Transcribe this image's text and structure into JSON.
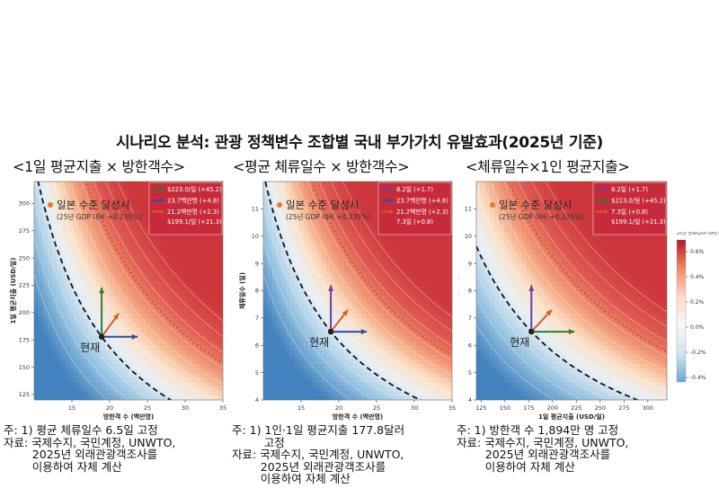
{
  "title": "시나리오 분석: 관광 정책변수 조합별 국내 부가가치 유발효과(2025년 기준)",
  "colorbar": {
    "title": "25년 명목GDP 대비(%)",
    "ticks": [
      "0.6%",
      "0.4%",
      "0.2%",
      "0.0%",
      "-0.2%",
      "-0.4%"
    ],
    "colors": [
      "#b2182b",
      "#ef8a62",
      "#fddbc7",
      "#f7f7f7",
      "#d1e5f0",
      "#67a9cf"
    ]
  },
  "chart_data": [
    {
      "type": "heatmap",
      "panel_title": "<1일 평균지출 × 방한객수>",
      "xlabel": "방한객 수 (백만명)",
      "ylabel": "1일 평균지출 (USD/일)",
      "xlim": [
        10,
        35
      ],
      "ylim": [
        120,
        320
      ],
      "xticks": [
        "15",
        "20",
        "25",
        "30",
        "35"
      ],
      "yticks": [
        "125",
        "150",
        "175",
        "200",
        "225",
        "250",
        "275",
        "300"
      ],
      "current": {
        "x": 18.94,
        "y": 177.8,
        "label": "현재"
      },
      "japan_label": "일본 수준 달성시",
      "japan_sublabel": "(25년 GDP 대비 +0.235%)",
      "legend": [
        {
          "text": "$223.0/일 (+45.2)",
          "color": "#2e7d32"
        },
        {
          "text": "23.7백만명 (+4.8)",
          "color": "#2b4f9e"
        },
        {
          "text": "21.2백만명 (+2.3)",
          "color": "#e05a1c"
        },
        {
          "text": "$199.1/일 (+21.3)",
          "color": "#e05a1c"
        }
      ],
      "arrows": [
        {
          "x": 18.94,
          "y": 223.0,
          "color": "#2e7d32"
        },
        {
          "x": 23.7,
          "y": 177.8,
          "color": "#2b4f9e"
        },
        {
          "x": 21.2,
          "y": 199.1,
          "color": "#e05a1c"
        }
      ],
      "notes": "주: 1) 평균 체류일수 6.5일 고정\n자료: 국제수지, 국민계정, UNWTO,\n        2025년 외래관광객조사를\n        이용하여 자체 계산"
    },
    {
      "type": "heatmap",
      "panel_title": "<평균 체류일수 × 방한객수>",
      "xlabel": "방한객 수 (백만명)",
      "ylabel": "체류일수 (일)",
      "xlim": [
        10,
        35
      ],
      "ylim": [
        4,
        12
      ],
      "xticks": [
        "15",
        "20",
        "25",
        "30",
        "35"
      ],
      "yticks": [
        "4",
        "5",
        "6",
        "7",
        "8",
        "9",
        "10",
        "11"
      ],
      "current": {
        "x": 18.94,
        "y": 6.5,
        "label": "현재"
      },
      "japan_label": "일본 수준 달성시",
      "japan_sublabel": "(25년 GDP 대비 +0.235%)",
      "legend": [
        {
          "text": "8.2일 (+1.7)",
          "color": "#6a3fa0"
        },
        {
          "text": "23.7백만명 (+4.8)",
          "color": "#2b4f9e"
        },
        {
          "text": "21.2백만명 (+2.3)",
          "color": "#e05a1c"
        },
        {
          "text": "7.3일 (+0.8)",
          "color": "#e05a1c"
        }
      ],
      "arrows": [
        {
          "x": 18.94,
          "y": 8.2,
          "color": "#6a3fa0"
        },
        {
          "x": 23.7,
          "y": 6.5,
          "color": "#2b4f9e"
        },
        {
          "x": 21.2,
          "y": 7.3,
          "color": "#e05a1c"
        }
      ],
      "notes": "주: 1) 1인·1일 평균지출 177.8달러\n         고정\n자료: 국제수지, 국민계정, UNWTO,\n        2025년 외래관광객조사를\n        이용하여 자체 계산"
    },
    {
      "type": "heatmap",
      "panel_title": "<체류일수×1인 평균지출>",
      "xlabel": "1일 평균지출 (USD/일)",
      "ylabel": "체류일수 (일)",
      "xlim": [
        120,
        320
      ],
      "ylim": [
        4,
        12
      ],
      "xticks": [
        "125",
        "150",
        "175",
        "200",
        "225",
        "250",
        "275",
        "300"
      ],
      "yticks": [
        "4",
        "5",
        "6",
        "7",
        "8",
        "9",
        "10",
        "11"
      ],
      "current": {
        "x": 177.8,
        "y": 6.5,
        "label": "현재"
      },
      "japan_label": "일본 수준 달성시",
      "japan_sublabel": "(25년 GDP 대비 +0.235%)",
      "legend": [
        {
          "text": "8.2일 (+1.7)",
          "color": "#6a3fa0"
        },
        {
          "text": "$223.0/일 (+45.2)",
          "color": "#2e7d32"
        },
        {
          "text": "7.3일 (+0.8)",
          "color": "#e05a1c"
        },
        {
          "text": "$199.1/일 (+21.3)",
          "color": "#e05a1c"
        }
      ],
      "arrows": [
        {
          "x": 177.8,
          "y": 8.2,
          "color": "#6a3fa0"
        },
        {
          "x": 223.0,
          "y": 6.5,
          "color": "#2e7d32"
        },
        {
          "x": 199.1,
          "y": 7.3,
          "color": "#e05a1c"
        }
      ],
      "notes": "주: 1) 방한객 수 1,894만 명 고정\n자료: 국제수지, 국민계정, UNWTO,\n        2025년 외래관광객조사를\n        이용하여 자체 계산"
    }
  ]
}
